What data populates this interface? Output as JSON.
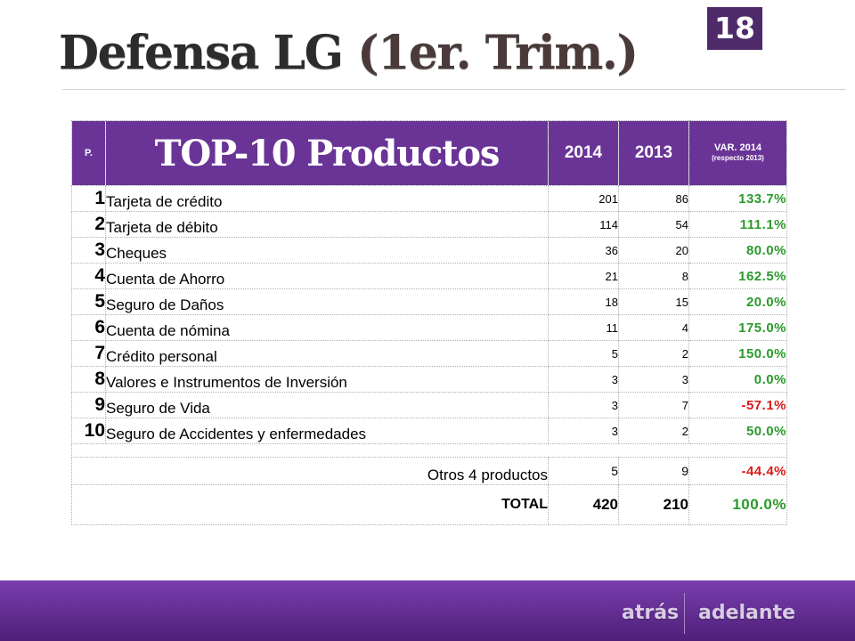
{
  "header": {
    "page_number": "18",
    "title_main": "Defensa LG",
    "title_paren": "(1er. Trim.)"
  },
  "table": {
    "columns": {
      "rank": "P.",
      "title": "TOP-10 Productos",
      "year_a": "2014",
      "year_b": "2013",
      "var": "VAR. 2014",
      "var_sub": "(respecto 2013)"
    },
    "rows": [
      {
        "rank": "1",
        "product": "Tarjeta de crédito",
        "v2014": "201",
        "v2013": "86",
        "var": "133.7%"
      },
      {
        "rank": "2",
        "product": "Tarjeta de débito",
        "v2014": "114",
        "v2013": "54",
        "var": "111.1%"
      },
      {
        "rank": "3",
        "product": "Cheques",
        "v2014": "36",
        "v2013": "20",
        "var": "80.0%"
      },
      {
        "rank": "4",
        "product": "Cuenta de Ahorro",
        "v2014": "21",
        "v2013": "8",
        "var": "162.5%"
      },
      {
        "rank": "5",
        "product": "Seguro de Daños",
        "v2014": "18",
        "v2013": "15",
        "var": "20.0%"
      },
      {
        "rank": "6",
        "product": "Cuenta de nómina",
        "v2014": "11",
        "v2013": "4",
        "var": "175.0%"
      },
      {
        "rank": "7",
        "product": "Crédito personal",
        "v2014": "5",
        "v2013": "2",
        "var": "150.0%"
      },
      {
        "rank": "8",
        "product": "Valores e Instrumentos de Inversión",
        "v2014": "3",
        "v2013": "3",
        "var": "0.0%"
      },
      {
        "rank": "9",
        "product": "Seguro de Vida",
        "v2014": "3",
        "v2013": "7",
        "var": "-57.1%"
      },
      {
        "rank": "10",
        "product": "Seguro de Accidentes y enfermedades",
        "v2014": "3",
        "v2013": "2",
        "var": "50.0%"
      }
    ],
    "others": {
      "label": "Otros 4 productos",
      "v2014": "5",
      "v2013": "9",
      "var": "-44.4%"
    },
    "total": {
      "label": "TOTAL",
      "v2014": "420",
      "v2013": "210",
      "var": "100.0%"
    }
  },
  "nav": {
    "back": "atrás",
    "forward": "adelante"
  },
  "colors": {
    "header_purple": "#6a3497",
    "page_badge": "#4e2a6b",
    "positive": "#2a9a2a",
    "negative": "#d71a1a",
    "footer": "#5e2a8e"
  }
}
